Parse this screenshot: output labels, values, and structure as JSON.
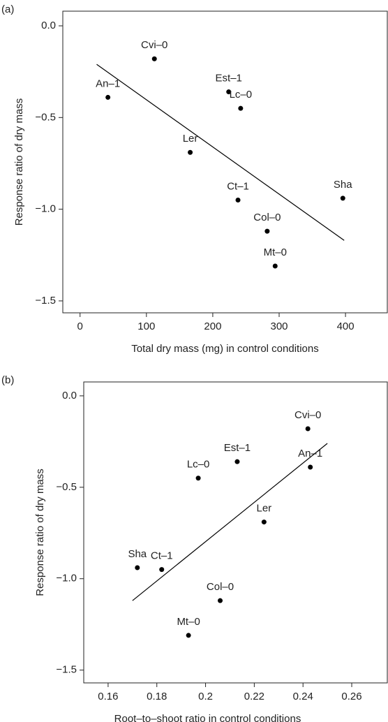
{
  "chart_data": [
    {
      "type": "scatter",
      "panel_label": "(a)",
      "x_label": "Total dry mass (mg) in control conditions",
      "y_label": "Response ratio of dry mass",
      "labels": [
        "Cvi–0",
        "An–1",
        "Est–1",
        "Lc–0",
        "Ler",
        "Ct–1",
        "Sha",
        "Col–0",
        "Mt–0"
      ],
      "x": [
        112,
        42,
        224,
        242,
        166,
        238,
        396,
        282,
        294
      ],
      "y": [
        -0.18,
        -0.39,
        -0.36,
        -0.45,
        -0.69,
        -0.95,
        -0.94,
        -1.12,
        -1.31
      ],
      "fit": {
        "x": [
          25,
          398
        ],
        "y": [
          -0.21,
          -1.17
        ]
      },
      "color": "#000000",
      "xlim": [
        -26,
        463
      ],
      "ylim": [
        -1.565,
        0.08
      ],
      "xticks": [
        0,
        100,
        200,
        300,
        400
      ],
      "yticks": [
        {
          "value": 0,
          "label": "0.0"
        },
        {
          "value": -0.5,
          "label": "−0.5"
        },
        {
          "value": -1,
          "label": "−1.0"
        },
        {
          "value": -1.5,
          "label": "−1.5"
        }
      ]
    },
    {
      "type": "scatter",
      "panel_label": "(b)",
      "x_label": "Root–to–shoot ratio in control conditions",
      "y_label": "Response ratio of dry mass",
      "labels": [
        "Cvi–0",
        "An–1",
        "Est–1",
        "Lc–0",
        "Ler",
        "Sha",
        "Ct–1",
        "Col–0",
        "Mt–0"
      ],
      "x": [
        0.242,
        0.243,
        0.213,
        0.197,
        0.224,
        0.172,
        0.182,
        0.206,
        0.193
      ],
      "y": [
        -0.18,
        -0.39,
        -0.36,
        -0.45,
        -0.69,
        -0.94,
        -0.95,
        -1.12,
        -1.31
      ],
      "fit": {
        "x": [
          0.17,
          0.25
        ],
        "y": [
          -1.12,
          -0.26
        ]
      },
      "color": "#000000",
      "xlim": [
        0.15,
        0.2746
      ],
      "ylim": [
        -1.57,
        0.076
      ],
      "xticks": [
        0.16,
        0.18,
        0.2,
        0.22,
        0.24,
        0.26
      ],
      "yticks": [
        {
          "value": 0,
          "label": "0.0"
        },
        {
          "value": -0.5,
          "label": "−0.5"
        },
        {
          "value": -1,
          "label": "−1.0"
        },
        {
          "value": -1.5,
          "label": "−1.5"
        }
      ]
    }
  ]
}
